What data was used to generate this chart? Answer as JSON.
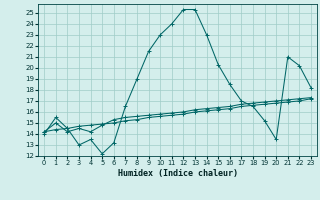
{
  "xlabel": "Humidex (Indice chaleur)",
  "bg_color": "#d4eeec",
  "grid_color": "#a0ccc8",
  "line_color": "#006666",
  "xlim": [
    -0.5,
    23.5
  ],
  "ylim": [
    12,
    25.8
  ],
  "xticks": [
    0,
    1,
    2,
    3,
    4,
    5,
    6,
    7,
    8,
    9,
    10,
    11,
    12,
    13,
    14,
    15,
    16,
    17,
    18,
    19,
    20,
    21,
    22,
    23
  ],
  "yticks": [
    12,
    13,
    14,
    15,
    16,
    17,
    18,
    19,
    20,
    21,
    22,
    23,
    24,
    25
  ],
  "series1_x": [
    0,
    1,
    2,
    3,
    4,
    5,
    6,
    7,
    8,
    9,
    10,
    11,
    12,
    13,
    14,
    15,
    16,
    17,
    18,
    19,
    20,
    21,
    22,
    23
  ],
  "series1_y": [
    14.0,
    15.5,
    14.5,
    13.0,
    13.5,
    12.2,
    13.2,
    16.5,
    19.0,
    21.5,
    23.0,
    24.0,
    25.3,
    25.3,
    23.0,
    20.3,
    18.5,
    17.0,
    16.5,
    15.2,
    13.5,
    21.0,
    20.2,
    18.2
  ],
  "series2_x": [
    0,
    1,
    2,
    3,
    4,
    5,
    6,
    7,
    8,
    9,
    10,
    11,
    12,
    13,
    14,
    15,
    16,
    17,
    18,
    19,
    20,
    21,
    22,
    23
  ],
  "series2_y": [
    14.2,
    15.0,
    14.2,
    14.5,
    14.2,
    14.8,
    15.3,
    15.5,
    15.6,
    15.7,
    15.8,
    15.9,
    16.0,
    16.2,
    16.3,
    16.4,
    16.5,
    16.7,
    16.8,
    16.9,
    17.0,
    17.1,
    17.2,
    17.3
  ],
  "series3_x": [
    0,
    1,
    2,
    3,
    4,
    5,
    6,
    7,
    8,
    9,
    10,
    11,
    12,
    13,
    14,
    15,
    16,
    17,
    18,
    19,
    20,
    21,
    22,
    23
  ],
  "series3_y": [
    14.2,
    14.4,
    14.5,
    14.7,
    14.8,
    14.9,
    15.0,
    15.2,
    15.3,
    15.5,
    15.6,
    15.7,
    15.8,
    16.0,
    16.1,
    16.2,
    16.3,
    16.5,
    16.6,
    16.7,
    16.8,
    16.9,
    17.0,
    17.2
  ]
}
